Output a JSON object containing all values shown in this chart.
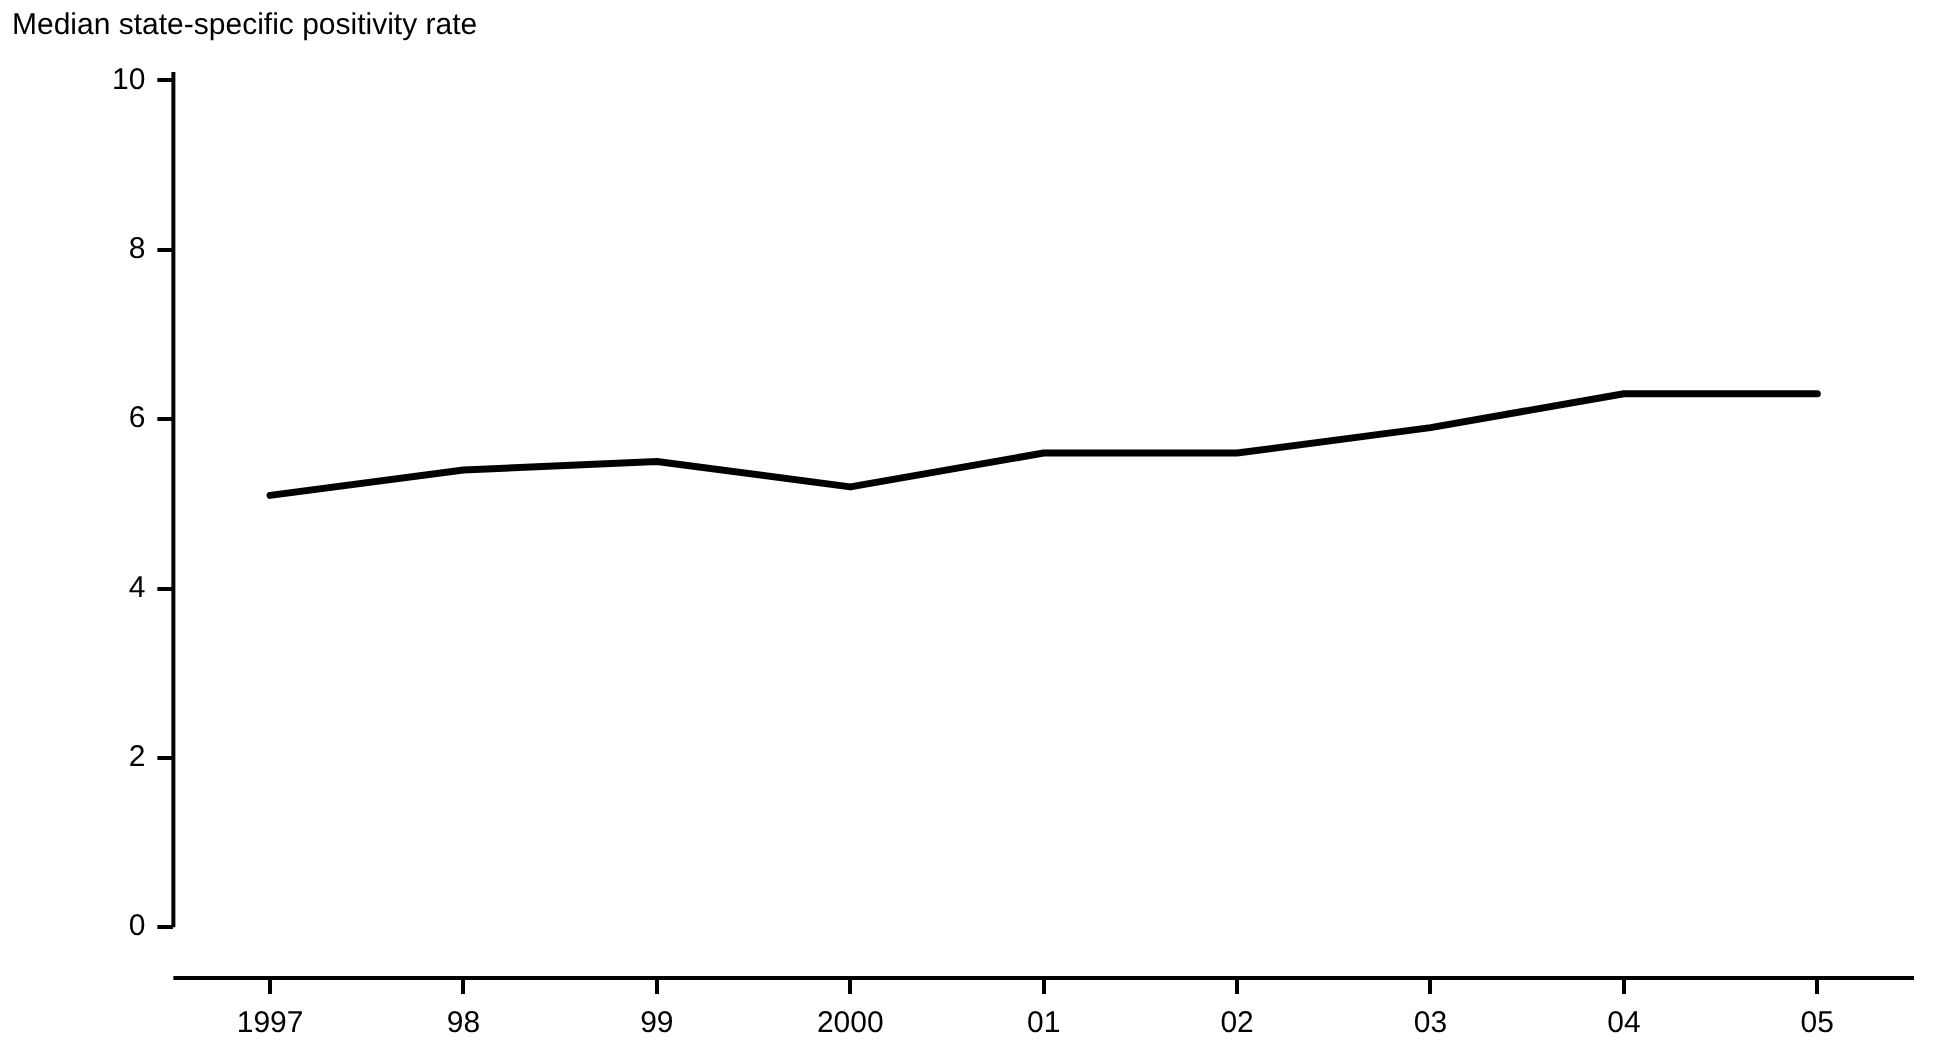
{
  "chart_data": {
    "type": "line",
    "ylabel": "Median state-specific positivity rate",
    "categories": [
      "1997",
      "98",
      "99",
      "2000",
      "01",
      "02",
      "03",
      "04",
      "05"
    ],
    "series": [
      {
        "color": "#000000",
        "values": [
          5.1,
          5.4,
          5.5,
          5.2,
          5.6,
          5.6,
          5.9,
          6.3,
          6.3
        ]
      }
    ],
    "ylim": [
      -0.6,
      10.1
    ],
    "yticks": [
      0,
      2,
      4,
      6,
      8,
      10
    ],
    "grid": false,
    "legend": false,
    "marker": "none",
    "line_style": "solid"
  }
}
